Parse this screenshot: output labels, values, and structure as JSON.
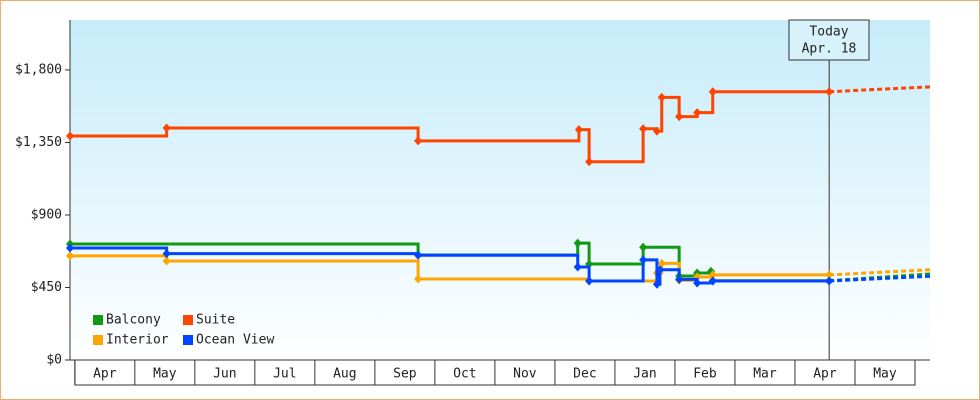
{
  "chart_data": {
    "type": "step-line",
    "xlim": [
      -0.08,
      14.25
    ],
    "ylim": [
      0,
      2110
    ],
    "yticks": [
      {
        "value": 0,
        "label": "$0"
      },
      {
        "value": 450,
        "label": "$450"
      },
      {
        "value": 900,
        "label": "$900"
      },
      {
        "value": 1350,
        "label": "$1,350"
      },
      {
        "value": 1800,
        "label": "$1,800"
      }
    ],
    "xticks": [
      {
        "value": 0.5,
        "label": "Apr"
      },
      {
        "value": 1.5,
        "label": "May"
      },
      {
        "value": 2.5,
        "label": "Jun"
      },
      {
        "value": 3.5,
        "label": "Jul"
      },
      {
        "value": 4.5,
        "label": "Aug"
      },
      {
        "value": 5.5,
        "label": "Sep"
      },
      {
        "value": 6.5,
        "label": "Oct"
      },
      {
        "value": 7.5,
        "label": "Nov"
      },
      {
        "value": 8.5,
        "label": "Dec"
      },
      {
        "value": 9.5,
        "label": "Jan"
      },
      {
        "value": 10.5,
        "label": "Feb"
      },
      {
        "value": 11.5,
        "label": "Mar"
      },
      {
        "value": 12.5,
        "label": "Apr"
      },
      {
        "value": 13.5,
        "label": "May"
      }
    ],
    "annotation": {
      "x": 12.57,
      "label": "Today",
      "date": "Apr. 18"
    },
    "forecast_x": [
      12.57,
      14.25
    ],
    "series": [
      {
        "name": "Balcony",
        "color": "#119911",
        "x": [
          -0.08,
          5.72,
          8.38,
          8.57,
          9.47,
          10.07,
          10.37,
          10.6,
          10.63,
          12.57
        ],
        "values": [
          720,
          652,
          725,
          596,
          700,
          521,
          540,
          550,
          492,
          492
        ],
        "forecast": [
          492,
          534
        ]
      },
      {
        "name": "Suite",
        "color": "#ff4400",
        "x": [
          -0.08,
          1.53,
          5.72,
          8.4,
          8.57,
          9.47,
          9.7,
          9.78,
          10.07,
          10.37,
          10.63,
          12.57
        ],
        "values": [
          1390,
          1440,
          1360,
          1430,
          1230,
          1435,
          1420,
          1630,
          1510,
          1535,
          1665,
          1665
        ],
        "forecast": [
          1665,
          1695
        ]
      },
      {
        "name": "Interior",
        "color": "#ffa500",
        "x": [
          -0.08,
          1.53,
          5.72,
          8.57,
          9.7,
          9.78,
          10.07,
          10.37,
          10.63,
          12.57
        ],
        "values": [
          646,
          614,
          503,
          490,
          540,
          600,
          495,
          515,
          528,
          528
        ],
        "forecast": [
          528,
          560
        ]
      },
      {
        "name": "Ocean View",
        "color": "#0044ff",
        "x": [
          -0.08,
          1.53,
          5.72,
          8.38,
          8.57,
          9.47,
          9.7,
          9.75,
          10.07,
          10.37,
          10.63,
          12.57
        ],
        "values": [
          695,
          660,
          650,
          577,
          490,
          621,
          470,
          560,
          500,
          478,
          490,
          490
        ],
        "forecast": [
          490,
          520
        ]
      }
    ]
  }
}
